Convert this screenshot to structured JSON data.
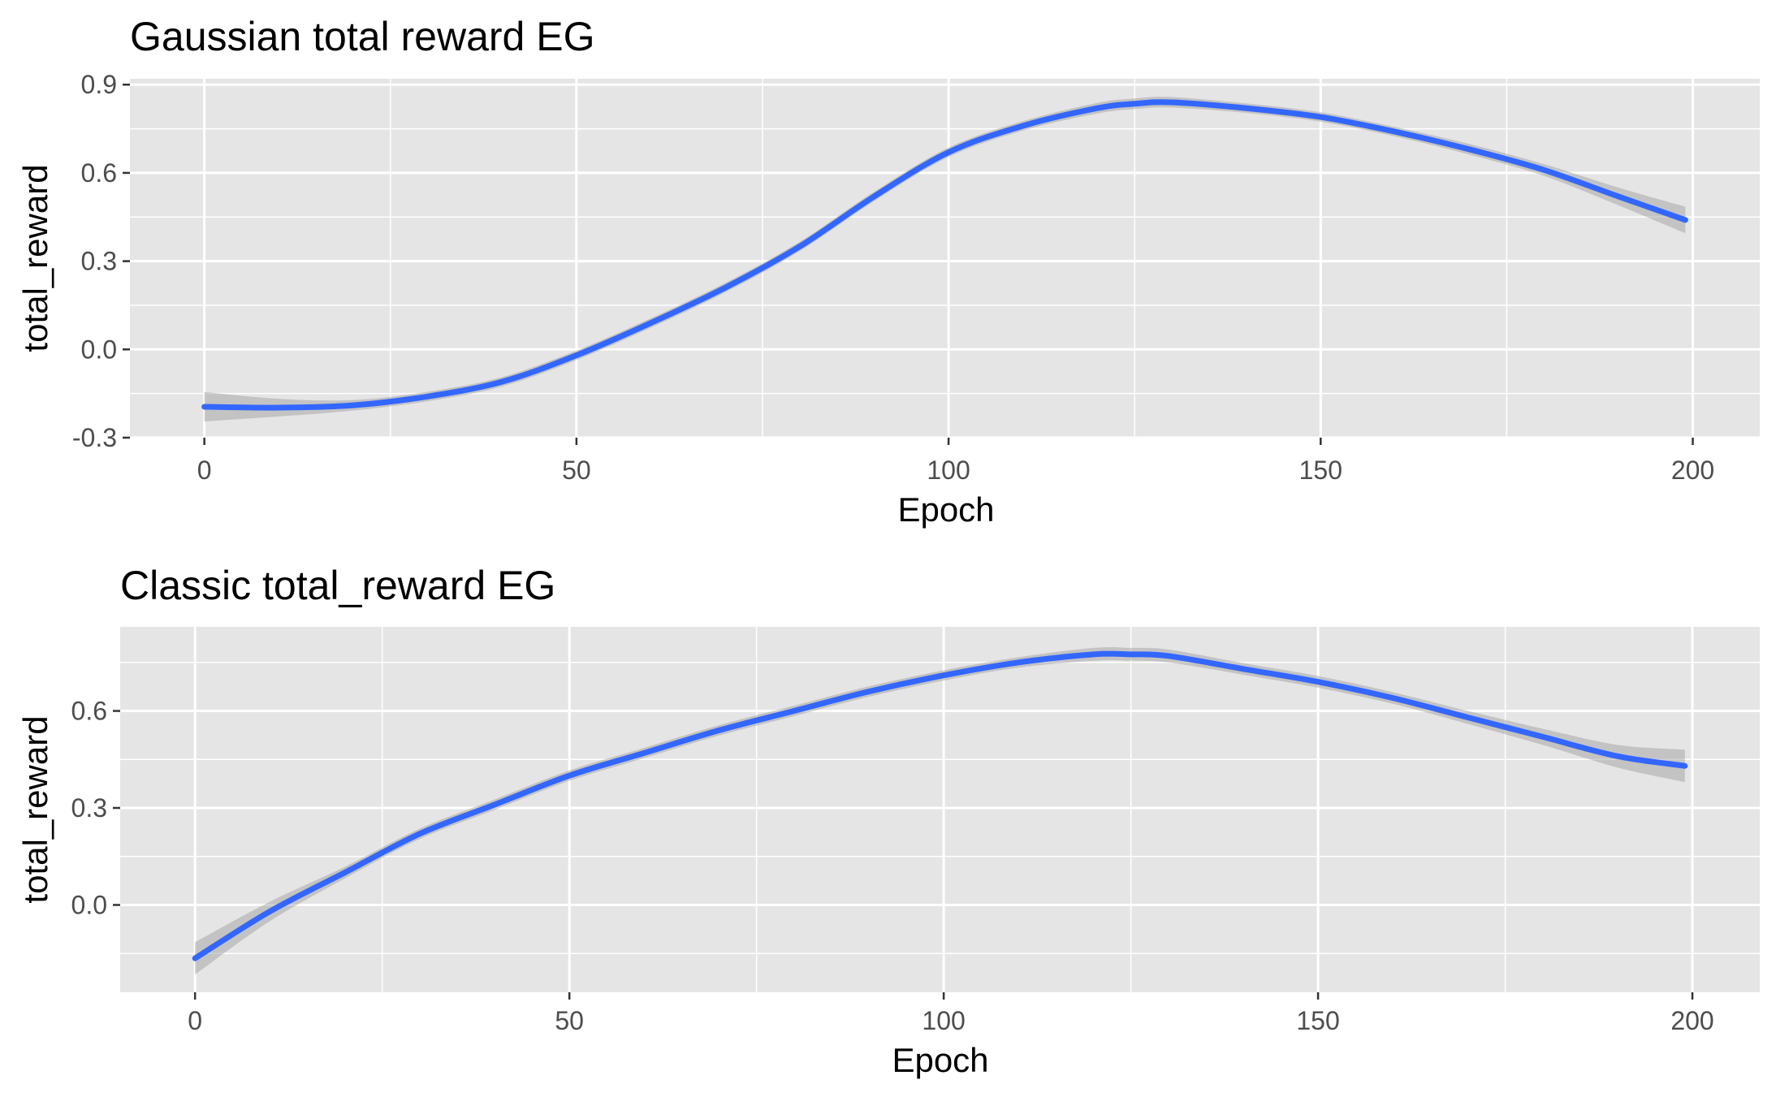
{
  "chart_data": [
    {
      "type": "line",
      "title": "Gaussian total reward EG",
      "xlabel": "Epoch",
      "ylabel": "total_reward",
      "xlim": [
        -10,
        209
      ],
      "ylim": [
        -0.3,
        0.92
      ],
      "x_ticks": [
        0,
        50,
        100,
        150,
        200
      ],
      "x_tick_labels": [
        "0",
        "50",
        "100",
        "150",
        "200"
      ],
      "y_ticks": [
        -0.3,
        0,
        0.3,
        0.6,
        0.9
      ],
      "y_tick_labels": [
        "-0.3",
        "0.0",
        "0.3",
        "0.6",
        "0.9"
      ],
      "grid": true,
      "series": [
        {
          "color": "#3366ff",
          "x": [
            0,
            10,
            20,
            30,
            40,
            50,
            60,
            70,
            80,
            90,
            100,
            110,
            120,
            125,
            130,
            140,
            150,
            160,
            170,
            180,
            190,
            199
          ],
          "y": [
            -0.195,
            -0.198,
            -0.19,
            -0.16,
            -0.11,
            -0.02,
            0.09,
            0.21,
            0.35,
            0.52,
            0.67,
            0.76,
            0.82,
            0.835,
            0.84,
            0.82,
            0.79,
            0.74,
            0.68,
            0.61,
            0.52,
            0.44
          ],
          "band_halfwidth": [
            0.05,
            0.03,
            0.018,
            0.016,
            0.016,
            0.016,
            0.016,
            0.016,
            0.016,
            0.016,
            0.016,
            0.016,
            0.018,
            0.018,
            0.018,
            0.016,
            0.016,
            0.016,
            0.018,
            0.02,
            0.03,
            0.045
          ]
        }
      ]
    },
    {
      "type": "line",
      "title": "Classic total_reward EG",
      "xlabel": "Epoch",
      "ylabel": "total_reward",
      "xlim": [
        -10,
        209
      ],
      "ylim": [
        -0.27,
        0.86
      ],
      "x_ticks": [
        0,
        50,
        100,
        150,
        200
      ],
      "x_tick_labels": [
        "0",
        "50",
        "100",
        "150",
        "200"
      ],
      "y_ticks": [
        0,
        0.3,
        0.6
      ],
      "y_tick_labels": [
        "0.0",
        "0.3",
        "0.6"
      ],
      "grid": true,
      "series": [
        {
          "color": "#3366ff",
          "x": [
            0,
            10,
            20,
            30,
            40,
            50,
            60,
            70,
            80,
            90,
            100,
            110,
            120,
            125,
            130,
            140,
            150,
            160,
            170,
            180,
            190,
            199
          ],
          "y": [
            -0.165,
            -0.02,
            0.1,
            0.22,
            0.31,
            0.4,
            0.47,
            0.54,
            0.6,
            0.66,
            0.71,
            0.75,
            0.775,
            0.775,
            0.77,
            0.73,
            0.69,
            0.64,
            0.58,
            0.52,
            0.46,
            0.43
          ],
          "band_halfwidth": [
            0.05,
            0.03,
            0.018,
            0.016,
            0.016,
            0.016,
            0.016,
            0.016,
            0.016,
            0.016,
            0.016,
            0.016,
            0.02,
            0.02,
            0.02,
            0.018,
            0.018,
            0.018,
            0.02,
            0.025,
            0.035,
            0.05
          ]
        }
      ]
    }
  ]
}
